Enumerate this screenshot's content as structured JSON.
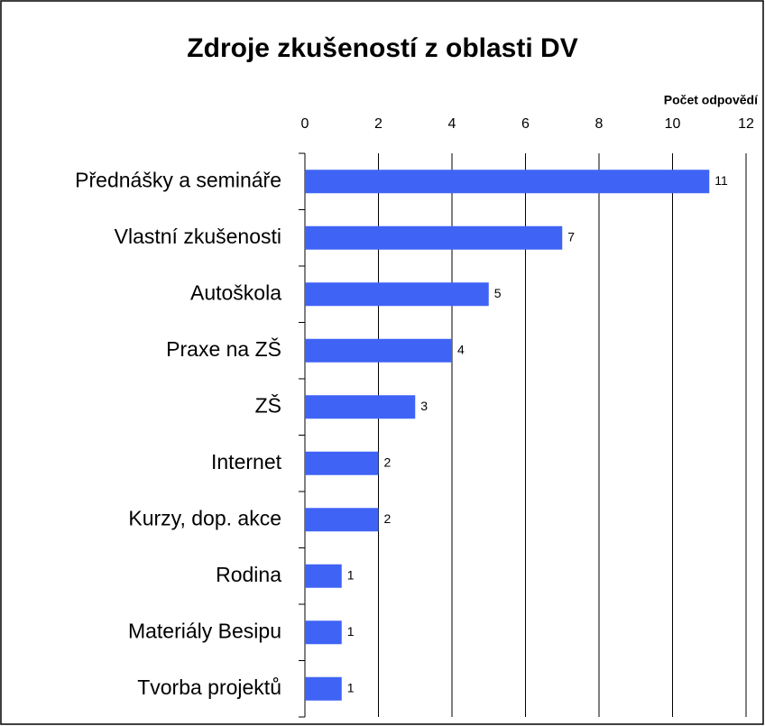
{
  "chart_data": {
    "type": "bar",
    "orientation": "horizontal",
    "title": "Zdroje zkušeností z oblasti DV",
    "x_axis_label": "Počet odpovědí",
    "categories": [
      "Přednášky a semináře",
      "Vlastní zkušenosti",
      "Autoškola",
      "Praxe na ZŠ",
      "ZŠ",
      "Internet",
      "Kurzy, dop. akce",
      "Rodina",
      "Materiály Besipu",
      "Tvorba projektů"
    ],
    "values": [
      11,
      7,
      5,
      4,
      3,
      2,
      2,
      1,
      1,
      1
    ],
    "color": "#3f63f5",
    "xlim": [
      0,
      12
    ],
    "xticks": [
      0,
      2,
      4,
      6,
      8,
      10,
      12
    ],
    "grid": true
  }
}
